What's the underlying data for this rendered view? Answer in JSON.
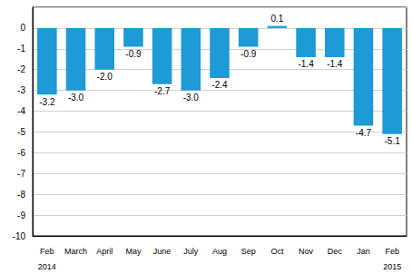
{
  "chart_data": {
    "type": "bar",
    "categories": [
      "Feb\n2014",
      "March",
      "April",
      "May",
      "June",
      "July",
      "Aug",
      "Sep",
      "Oct",
      "Nov",
      "Dec",
      "Jan",
      "Feb\n2015"
    ],
    "values": [
      -3.2,
      -3.0,
      -2.0,
      -0.9,
      -2.7,
      -3.0,
      -2.4,
      -0.9,
      0.1,
      -1.4,
      -1.4,
      -4.7,
      -5.1
    ],
    "value_labels": [
      "-3.2",
      "-3.0",
      "-2.0",
      "-0.9",
      "-2.7",
      "-3.0",
      "-2.4",
      "-0.9",
      "0.1",
      "-1.4",
      "-1.4",
      "-4.7",
      "-5.1"
    ],
    "color": "#1e9ad6",
    "ylim": [
      -10,
      1
    ],
    "yticks": [
      -10,
      -9,
      -8,
      -7,
      -6,
      -5,
      -4,
      -3,
      -2,
      -1,
      0
    ],
    "grid": true,
    "data_labels": true
  }
}
